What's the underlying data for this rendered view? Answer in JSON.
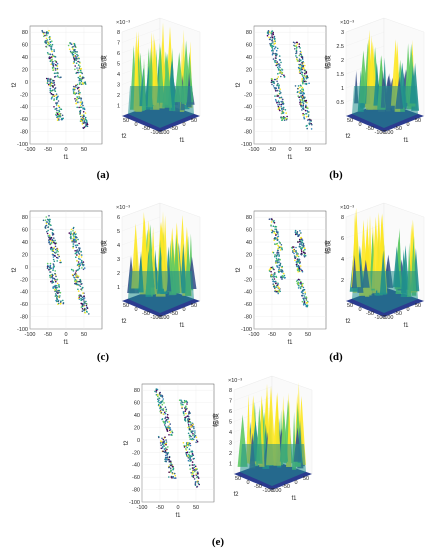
{
  "figure": {
    "panels": [
      {
        "id": "a",
        "caption": "(a)",
        "scatter": {
          "xlabel": "f1",
          "ylabel": "f2",
          "xticks": [
            "-100",
            "-50",
            "0",
            "50"
          ],
          "yticks": [
            "80",
            "60",
            "40",
            "20",
            "0",
            "-20",
            "-40",
            "-60",
            "-80",
            "-100"
          ],
          "xlim": [
            -100,
            100
          ],
          "ylim": [
            -100,
            90
          ]
        },
        "surface": {
          "zlabel": "幅/度",
          "exponent": "×10⁻³",
          "zticks": [
            "1",
            "2",
            "3",
            "4",
            "5",
            "6",
            "7",
            "8"
          ],
          "f2ticks": [
            "50",
            "0",
            "-50",
            "-100"
          ],
          "f1ticks": [
            "-100",
            "-50",
            "0",
            "50"
          ],
          "xlabel": "f1",
          "ylabel": "f2"
        }
      },
      {
        "id": "b",
        "caption": "(b)",
        "scatter": {
          "xlabel": "f1",
          "ylabel": "f2",
          "xticks": [
            "-100",
            "-50",
            "0",
            "50"
          ],
          "yticks": [
            "80",
            "60",
            "40",
            "20",
            "0",
            "-20",
            "-40",
            "-60",
            "-80",
            "-100"
          ],
          "xlim": [
            -100,
            100
          ],
          "ylim": [
            -100,
            90
          ]
        },
        "surface": {
          "zlabel": "幅/度",
          "exponent": "×10⁻³",
          "zticks": [
            "0.5",
            "1",
            "1.5",
            "2",
            "2.5",
            "3"
          ],
          "f2ticks": [
            "50",
            "0",
            "-50",
            "-100"
          ],
          "f1ticks": [
            "-100",
            "-50",
            "0",
            "50"
          ],
          "xlabel": "f1",
          "ylabel": "f2"
        }
      },
      {
        "id": "c",
        "caption": "(c)",
        "scatter": {
          "xlabel": "f1",
          "ylabel": "f2",
          "xticks": [
            "-100",
            "-50",
            "0",
            "50"
          ],
          "yticks": [
            "80",
            "60",
            "40",
            "20",
            "0",
            "-20",
            "-40",
            "-60",
            "-80",
            "-100"
          ],
          "xlim": [
            -100,
            100
          ],
          "ylim": [
            -100,
            90
          ]
        },
        "surface": {
          "zlabel": "幅/度",
          "exponent": "×10⁻³",
          "zticks": [
            "1",
            "2",
            "3",
            "4",
            "5",
            "6"
          ],
          "f2ticks": [
            "50",
            "0",
            "-50",
            "-100"
          ],
          "f1ticks": [
            "-100",
            "-50",
            "0",
            "50"
          ],
          "xlabel": "f1",
          "ylabel": "f2"
        }
      },
      {
        "id": "d",
        "caption": "(d)",
        "scatter": {
          "xlabel": "f1",
          "ylabel": "f2",
          "xticks": [
            "-100",
            "-50",
            "0",
            "50"
          ],
          "yticks": [
            "80",
            "60",
            "40",
            "20",
            "0",
            "-20",
            "-40",
            "-60",
            "-80",
            "-100"
          ],
          "xlim": [
            -100,
            100
          ],
          "ylim": [
            -100,
            90
          ]
        },
        "surface": {
          "zlabel": "幅/度",
          "exponent": "×10⁻³",
          "zticks": [
            "2",
            "4",
            "6",
            "8"
          ],
          "f2ticks": [
            "50",
            "0",
            "-50",
            "-100"
          ],
          "f1ticks": [
            "-100",
            "-50",
            "0",
            "50"
          ],
          "xlabel": "f1",
          "ylabel": "f2"
        }
      },
      {
        "id": "e",
        "caption": "(e)",
        "scatter": {
          "xlabel": "f1",
          "ylabel": "f2",
          "xticks": [
            "-100",
            "-50",
            "0",
            "50"
          ],
          "yticks": [
            "80",
            "60",
            "40",
            "20",
            "0",
            "-20",
            "-40",
            "-60",
            "-80",
            "-100"
          ],
          "xlim": [
            -100,
            100
          ],
          "ylim": [
            -100,
            90
          ]
        },
        "surface": {
          "zlabel": "幅/度",
          "exponent": "×10⁻³",
          "zticks": [
            "1",
            "2",
            "3",
            "4",
            "5",
            "6",
            "7",
            "8"
          ],
          "f2ticks": [
            "50",
            "0",
            "-50",
            "-100"
          ],
          "f1ticks": [
            "-100",
            "-50",
            "0",
            "50"
          ],
          "xlabel": "f1",
          "ylabel": "f2"
        }
      }
    ]
  },
  "chart_data": [
    {
      "type": "scatter",
      "panel": "a",
      "view": "2D frequency support",
      "xlabel": "f1",
      "ylabel": "f2",
      "xlim": [
        -100,
        100
      ],
      "ylim": [
        -100,
        90
      ],
      "regions": 4
    },
    {
      "type": "area",
      "panel": "a",
      "view": "3D amplitude surface",
      "xlabel": "f1",
      "ylabel": "f2",
      "zlabel": "幅/度",
      "zlim": [
        0,
        8
      ],
      "zscale": "1e-3"
    },
    {
      "type": "scatter",
      "panel": "b",
      "view": "2D frequency support",
      "xlabel": "f1",
      "ylabel": "f2",
      "xlim": [
        -100,
        100
      ],
      "ylim": [
        -100,
        90
      ],
      "regions": 4
    },
    {
      "type": "area",
      "panel": "b",
      "view": "3D amplitude surface",
      "xlabel": "f1",
      "ylabel": "f2",
      "zlabel": "幅/度",
      "zlim": [
        0,
        3
      ],
      "zscale": "1e-3"
    },
    {
      "type": "scatter",
      "panel": "c",
      "view": "2D frequency support",
      "xlabel": "f1",
      "ylabel": "f2",
      "xlim": [
        -100,
        100
      ],
      "ylim": [
        -100,
        90
      ],
      "regions": 4
    },
    {
      "type": "area",
      "panel": "c",
      "view": "3D amplitude surface",
      "xlabel": "f1",
      "ylabel": "f2",
      "zlabel": "幅/度",
      "zlim": [
        0,
        6
      ],
      "zscale": "1e-3"
    },
    {
      "type": "scatter",
      "panel": "d",
      "view": "2D frequency support",
      "xlabel": "f1",
      "ylabel": "f2",
      "xlim": [
        -100,
        100
      ],
      "ylim": [
        -100,
        90
      ],
      "regions": 6
    },
    {
      "type": "area",
      "panel": "d",
      "view": "3D amplitude surface",
      "xlabel": "f1",
      "ylabel": "f2",
      "zlabel": "幅/度",
      "zlim": [
        0,
        8
      ],
      "zscale": "1e-3"
    },
    {
      "type": "scatter",
      "panel": "e",
      "view": "2D frequency support",
      "xlabel": "f1",
      "ylabel": "f2",
      "xlim": [
        -100,
        100
      ],
      "ylim": [
        -100,
        90
      ],
      "regions": 4
    },
    {
      "type": "area",
      "panel": "e",
      "view": "3D amplitude surface",
      "xlabel": "f1",
      "ylabel": "f2",
      "zlabel": "幅/度",
      "zlim": [
        0,
        8
      ],
      "zscale": "1e-3"
    }
  ]
}
